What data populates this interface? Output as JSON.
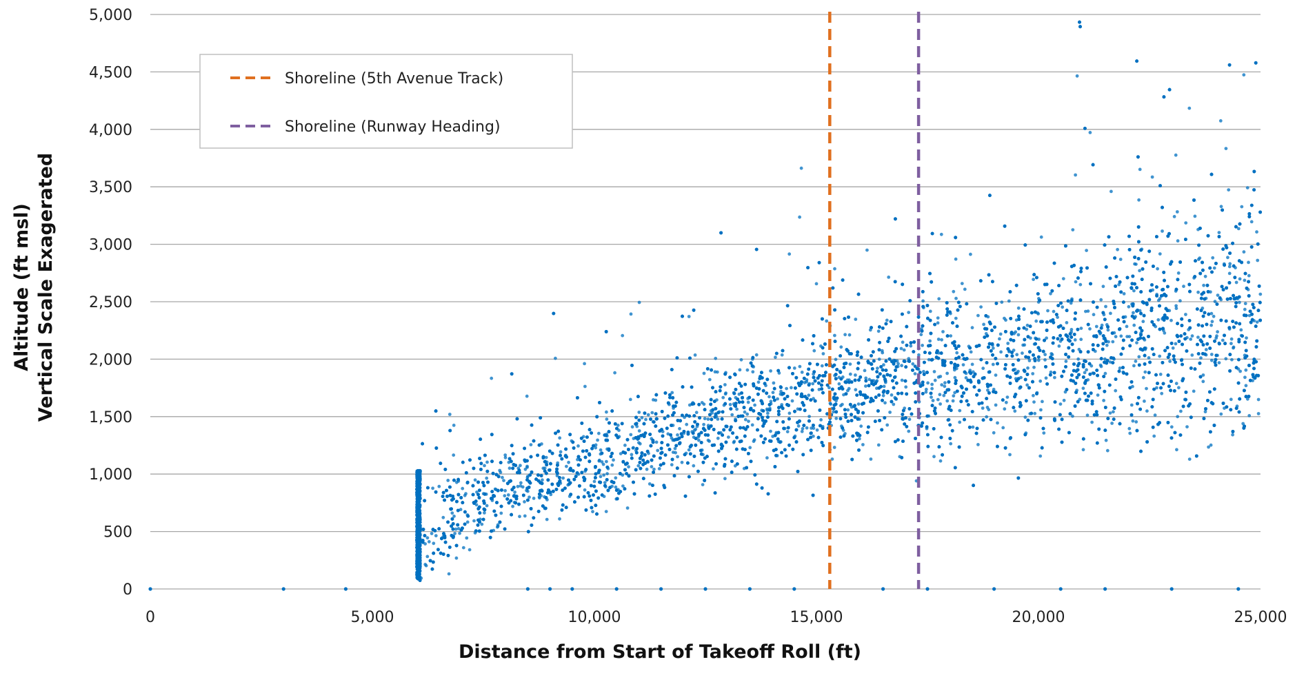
{
  "chart_data": {
    "type": "scatter",
    "xlabel": "Distance from Start of Takeoff Roll (ft)",
    "ylabel_lines": [
      "Altitude (ft msl)",
      "Vertical Scale Exagerated"
    ],
    "xlim": [
      0,
      25000
    ],
    "ylim": [
      0,
      5000
    ],
    "x_ticks": [
      0,
      5000,
      10000,
      15000,
      20000,
      25000
    ],
    "x_tick_labels": [
      "0",
      "5,000",
      "10,000",
      "15,000",
      "20,000",
      "25,000"
    ],
    "y_ticks": [
      0,
      500,
      1000,
      1500,
      2000,
      2500,
      3000,
      3500,
      4000,
      4500,
      5000
    ],
    "y_tick_labels": [
      "0",
      "500",
      "1,000",
      "1,500",
      "2,000",
      "2,500",
      "3,000",
      "3,500",
      "4,000",
      "4,500",
      "5,000"
    ],
    "grid": "horizontal",
    "legend_position": "top-left",
    "series": [
      {
        "kind": "scatter",
        "color": "#0070C0",
        "description_trend": [
          {
            "x": 6000,
            "y_center": 550,
            "y_spread": 480
          },
          {
            "x": 8000,
            "y_center": 850,
            "y_spread": 350
          },
          {
            "x": 10000,
            "y_center": 1100,
            "y_spread": 400
          },
          {
            "x": 12000,
            "y_center": 1350,
            "y_spread": 450
          },
          {
            "x": 14000,
            "y_center": 1550,
            "y_spread": 500
          },
          {
            "x": 16000,
            "y_center": 1750,
            "y_spread": 550
          },
          {
            "x": 18000,
            "y_center": 1900,
            "y_spread": 650
          },
          {
            "x": 20000,
            "y_center": 2000,
            "y_spread": 750
          },
          {
            "x": 22000,
            "y_center": 2150,
            "y_spread": 900
          },
          {
            "x": 25000,
            "y_center": 2400,
            "y_spread": 1100
          }
        ],
        "zero_altitude_points_x": [
          0,
          3000,
          4400,
          8500,
          9000,
          9500,
          10500,
          11500,
          12500,
          13500,
          14500,
          16500,
          17500,
          19000,
          20500,
          21500,
          23000,
          24500
        ]
      },
      {
        "kind": "vertical-line",
        "name": "Shoreline (5th Avenue Track)",
        "x": 15300,
        "color": "#E07020",
        "dash": "dashed"
      },
      {
        "kind": "vertical-line",
        "name": "Shoreline (Runway Heading)",
        "x": 17300,
        "color": "#7F5FA0",
        "dash": "dashed"
      }
    ]
  }
}
